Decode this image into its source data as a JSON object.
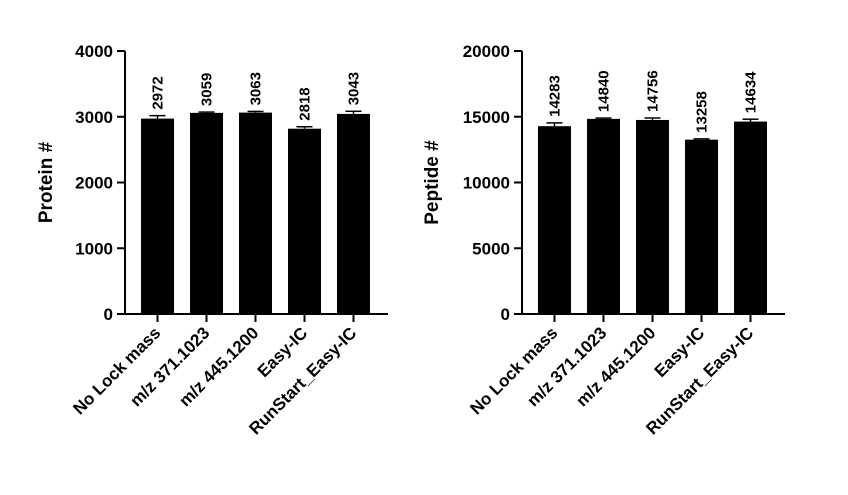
{
  "chart_data": [
    {
      "type": "bar",
      "title": "",
      "xlabel": "",
      "ylabel": "Protein #",
      "ylim": [
        0,
        4000
      ],
      "yticks": [
        0,
        1000,
        2000,
        3000,
        4000
      ],
      "categories": [
        "No Lock mass",
        "m/z 371.1023",
        "m/z 445.1200",
        "Easy-IC",
        "RunStart_Easy-IC"
      ],
      "values": [
        2972,
        3059,
        3063,
        2818,
        3043
      ],
      "error": [
        45,
        12,
        18,
        30,
        40
      ],
      "value_labels": [
        "2972",
        "3059",
        "3063",
        "2818",
        "3043"
      ],
      "bar_color": "#000000",
      "grid": false,
      "legend": "none"
    },
    {
      "type": "bar",
      "title": "",
      "xlabel": "",
      "ylabel": "Peptide #",
      "ylim": [
        0,
        20000
      ],
      "yticks": [
        0,
        5000,
        10000,
        15000,
        20000
      ],
      "categories": [
        "No Lock mass",
        "m/z 371.1023",
        "m/z 445.1200",
        "Easy-IC",
        "RunStart_Easy-IC"
      ],
      "values": [
        14283,
        14840,
        14756,
        13258,
        14634
      ],
      "error": [
        250,
        60,
        150,
        60,
        180
      ],
      "value_labels": [
        "14283",
        "14840",
        "14756",
        "13258",
        "14634"
      ],
      "bar_color": "#000000",
      "grid": false,
      "legend": "none"
    }
  ]
}
